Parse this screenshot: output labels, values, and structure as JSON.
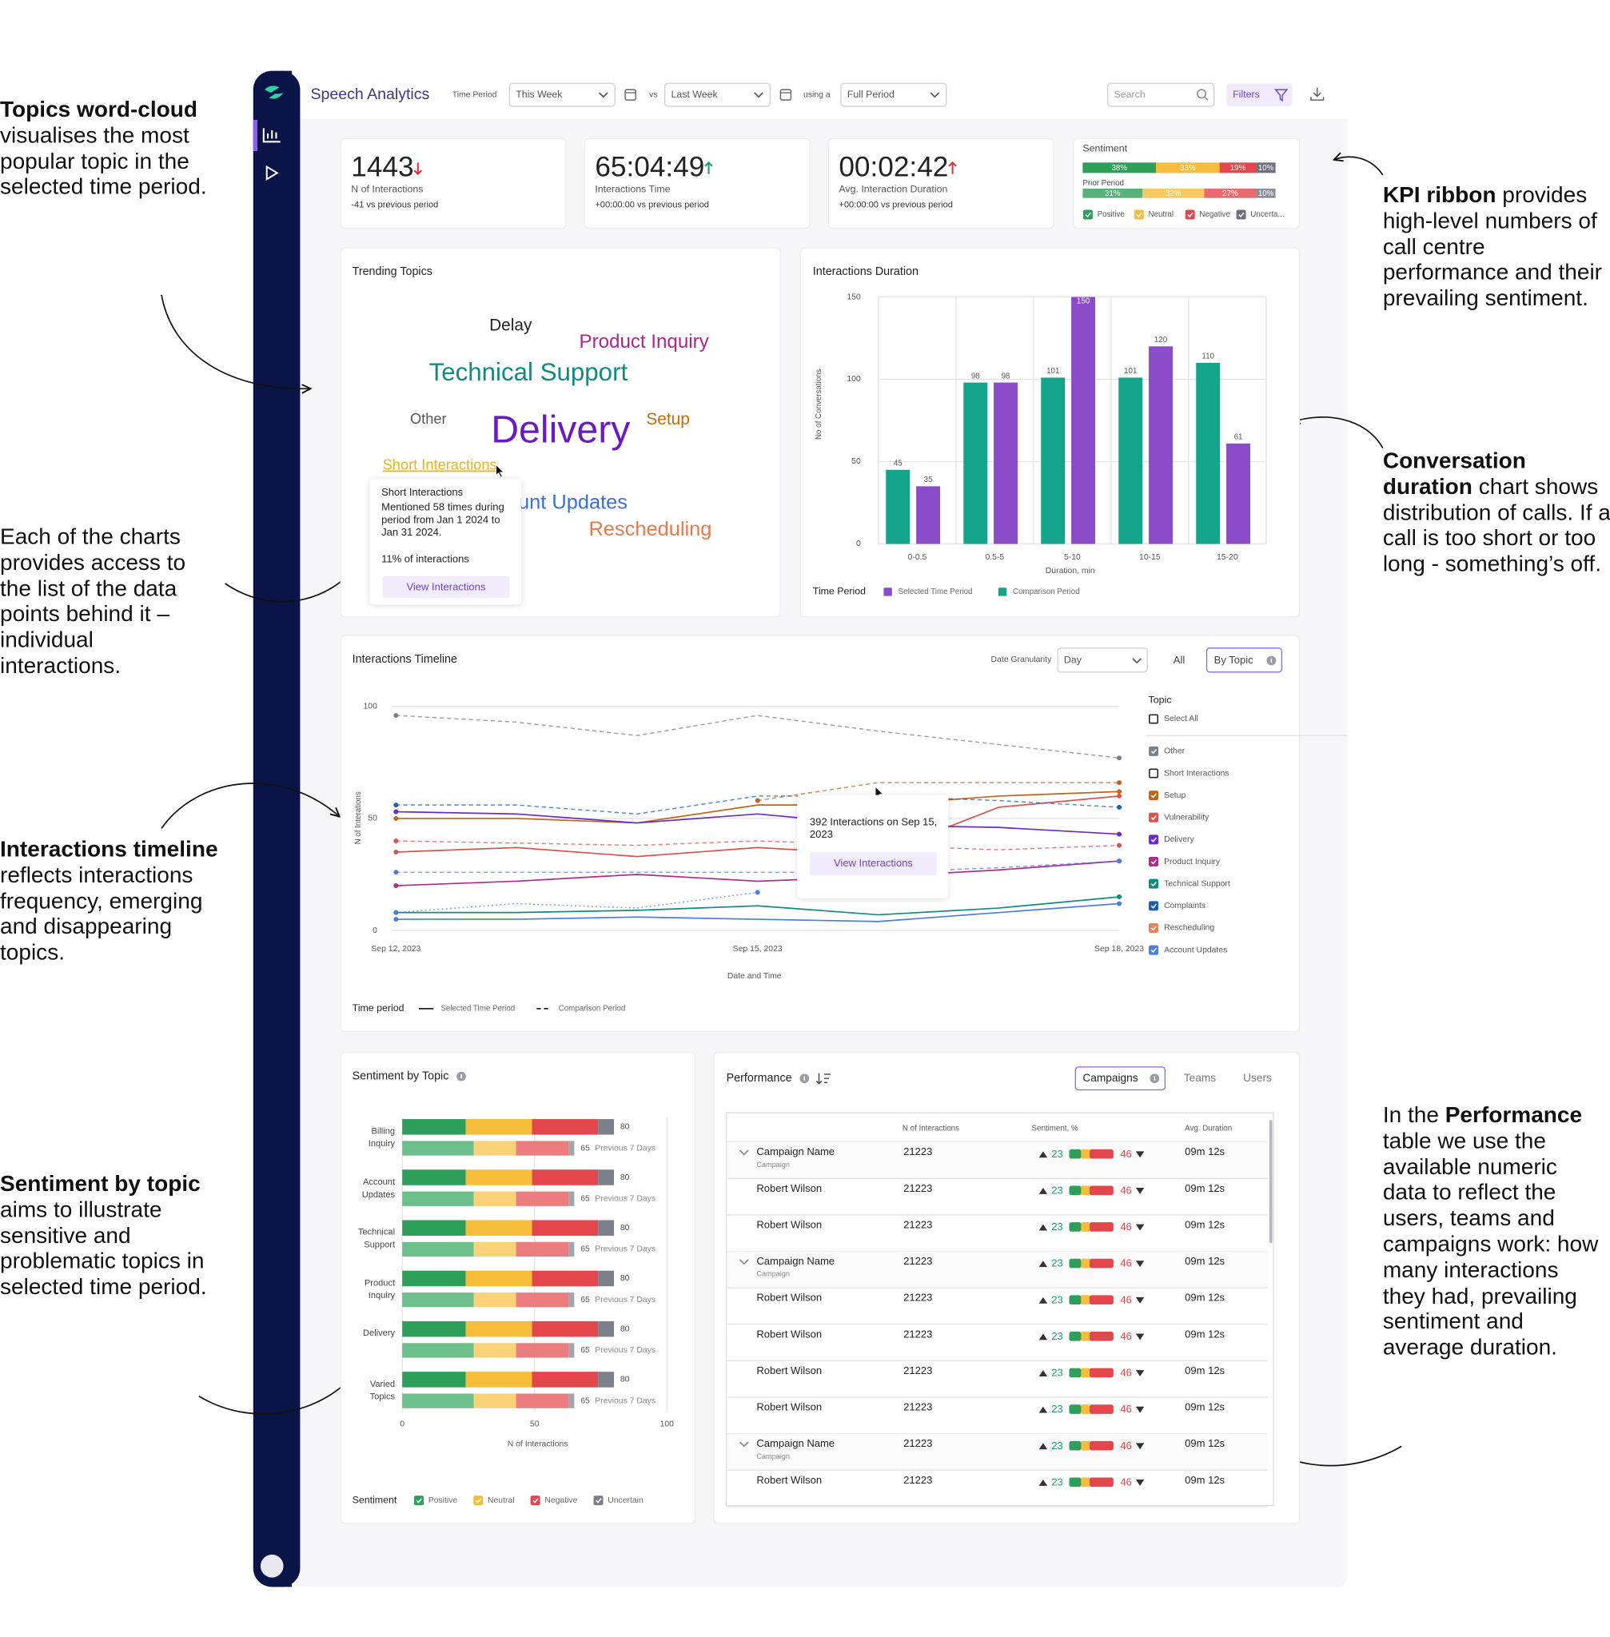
{
  "annotations": [
    {
      "runs": [
        {
          "text": "Topics word-cloud",
          "bold": true
        },
        {
          "text": " visualises the most popular topic in the selected time period."
        }
      ]
    },
    {
      "runs": [
        {
          "text": "KPI ribbon",
          "bold": true
        },
        {
          "text": " provides high-level numbers of call centre performance and their prevailing sentiment."
        }
      ]
    },
    {
      "runs": [
        {
          "text": "Each of the charts provides access to the list of the data points behind it – individual interactions."
        }
      ]
    },
    {
      "runs": [
        {
          "text": "Conversation duration",
          "bold": true
        },
        {
          "text": " chart shows distribution of calls. If a call is too short or too long - something’s off."
        }
      ]
    },
    {
      "runs": [
        {
          "text": "Interactions timeline",
          "bold": true
        },
        {
          "text": " reflects interactions frequency, emerging and disappearing topics."
        }
      ]
    },
    {
      "runs": [
        {
          "text": "Sentiment by topic",
          "bold": true
        },
        {
          "text": " aims to illustrate sensitive and problematic topics in selected time period."
        }
      ]
    },
    {
      "runs": [
        {
          "text": "In the "
        },
        {
          "text": "Performance",
          "bold": true
        },
        {
          "text": " table we use the available numeric data to reflect the users, teams and campaigns work: how many interactions they had, prevailing sentiment and average duration."
        }
      ]
    }
  ],
  "header": {
    "title": "Speech Analytics",
    "time_period_label": "Time Period",
    "time_period": "This Week",
    "vs": "vs",
    "compare_period": "Last Week",
    "using": "using a",
    "range": "Full Period",
    "search": "Search",
    "filters": "Filters"
  },
  "kpis": [
    {
      "value": 1443,
      "trend": "down",
      "trend_color": "#d9363e",
      "label": "N of Interactions",
      "delta": "-41 vs previous period"
    },
    {
      "value": "65:04:49",
      "trend": "up",
      "trend_color": "#1f9d6b",
      "label": "Interactions Time",
      "delta": "+00:00:00 vs previous period"
    },
    {
      "value": "00:02:42",
      "trend": "up",
      "trend_color": "#d9363e",
      "label": "Avg. Interaction Duration",
      "delta": "+00:00:00 vs previous period"
    }
  ],
  "sentiment_summary": {
    "type": "stacked-bar",
    "title": "Sentiment",
    "series": [
      {
        "name": "Positive",
        "color": "#2e9e5b"
      },
      {
        "name": "Neutral",
        "color": "#f6bd3a"
      },
      {
        "name": "Negative",
        "color": "#e3464c"
      },
      {
        "name": "Uncerta...",
        "color": "#6e717c"
      }
    ],
    "current": {
      "values": [
        38,
        33,
        19,
        10
      ],
      "value_labels": [
        "38%",
        "33%",
        "19%",
        "10%"
      ]
    },
    "prior": {
      "label": "Prior Period",
      "values": [
        31,
        32,
        27,
        10
      ],
      "value_labels": [
        "31%",
        "32%",
        "27%",
        "10%"
      ]
    }
  },
  "word_cloud": {
    "title": "Trending Topics",
    "words": [
      {
        "text": "Delay",
        "color": "#222222"
      },
      {
        "text": "Product Inquiry",
        "color": "#b0238a"
      },
      {
        "text": "Technical Support",
        "color": "#138a7e"
      },
      {
        "text": "Other",
        "color": "#555555"
      },
      {
        "text": "Delivery",
        "color": "#6a1bc0"
      },
      {
        "text": "Setup",
        "color": "#c96a08"
      },
      {
        "text": "Short Interactions",
        "color": "#e8b420"
      },
      {
        "text": "Account Updates",
        "color": "#3a6fd8"
      },
      {
        "text": "Rescheduling",
        "color": "#e8794a"
      }
    ],
    "tooltip": {
      "title": "Short Interactions",
      "text": "Mentioned 58 times during period from Jan 1 2024 to Jan 31 2024.",
      "share": "11% of interactions",
      "button": "View Interactions"
    }
  },
  "duration_chart": {
    "type": "bar",
    "title": "Interactions Duration",
    "ylabel": "No of Conversations",
    "xlabel": "Duration, min",
    "categories": [
      "0-0.5",
      "0.5-5",
      "5-10",
      "10-15",
      "15-20"
    ],
    "series": [
      {
        "name": "Selected Time Period",
        "color": "#8a4cc8",
        "values": [
          35,
          98,
          150,
          120,
          61
        ]
      },
      {
        "name": "Comparison Period",
        "color": "#14a38b",
        "values": [
          45,
          98,
          101,
          101,
          110
        ]
      }
    ],
    "ylim": [
      0,
      150
    ],
    "yticks": [
      0,
      50,
      100,
      150
    ],
    "grid": true,
    "legend_title": "Time Period"
  },
  "timeline_chart": {
    "type": "line",
    "title": "Interactions Timeline",
    "granularity_label": "Date Granularity",
    "granularity": "Day",
    "modes": [
      "All",
      "By Topic"
    ],
    "active_mode": 1,
    "ylabel": "N of Interations",
    "xlabel": "Date and Time",
    "categories": [
      "Sep 12, 2023",
      null,
      null,
      "Sep 15, 2023",
      null,
      null,
      "Sep 18, 2023"
    ],
    "ylim": [
      0,
      100
    ],
    "yticks": [
      0,
      50,
      100
    ],
    "grid": true,
    "topic_title": "Topic",
    "select_all": "Select All",
    "topics": [
      {
        "name": "Other",
        "color": "#7b7f8a",
        "checked": true,
        "lines": [
          {
            "style": "dashed",
            "values": [
              96,
              93,
              87,
              96,
              89,
              83,
              77
            ]
          }
        ]
      },
      {
        "name": "Short Interactions",
        "color": "#e8b420",
        "checked": false,
        "lines": []
      },
      {
        "name": "Setup",
        "color": "#c0651a",
        "checked": true,
        "lines": [
          {
            "style": "solid",
            "values": [
              50,
              50,
              48,
              56,
              56,
              60,
              62
            ]
          },
          {
            "style": "dashed",
            "values": [
              null,
              null,
              null,
              58,
              66,
              66,
              66
            ]
          }
        ]
      },
      {
        "name": "Vulnerability",
        "color": "#d9534f",
        "checked": true,
        "lines": [
          {
            "style": "solid",
            "values": [
              35,
              37,
              33,
              37,
              34,
              55,
              60
            ]
          },
          {
            "style": "dashed",
            "values": [
              40,
              39,
              38,
              40,
              38,
              36,
              38
            ]
          }
        ]
      },
      {
        "name": "Delivery",
        "color": "#6a2bc4",
        "checked": true,
        "lines": [
          {
            "style": "solid",
            "values": [
              53,
              52,
              48,
              52,
              47,
              46,
              43
            ]
          }
        ]
      },
      {
        "name": "Product Inquiry",
        "color": "#b02a8c",
        "checked": true,
        "lines": [
          {
            "style": "solid",
            "values": [
              20,
              22,
              25,
              22,
              24,
              27,
              31
            ]
          }
        ]
      },
      {
        "name": "Technical Support",
        "color": "#138a7e",
        "checked": true,
        "lines": [
          {
            "style": "solid",
            "values": [
              8,
              8,
              9,
              11,
              7,
              10,
              15
            ]
          }
        ]
      },
      {
        "name": "Complaints",
        "color": "#1a5fb4",
        "checked": true,
        "lines": [
          {
            "style": "dashed",
            "values": [
              56,
              56,
              52,
              60,
              60,
              58,
              55
            ]
          }
        ]
      },
      {
        "name": "Rescheduling",
        "color": "#e8825a",
        "checked": true,
        "lines": []
      },
      {
        "name": "Account Updates",
        "color": "#4a7de0",
        "checked": true,
        "lines": [
          {
            "style": "solid",
            "values": [
              5,
              5,
              6,
              5,
              4,
              8,
              12
            ]
          },
          {
            "style": "dashed",
            "values": [
              26,
              26,
              26,
              26,
              26,
              28,
              31
            ]
          },
          {
            "style": "dotted",
            "values": [
              8,
              12,
              10,
              17,
              null,
              null,
              null
            ]
          }
        ]
      }
    ],
    "tooltip": {
      "text": "392 Interactions on Sep 15, 2023",
      "button": "View Interactions"
    },
    "legend_title": "Time period",
    "legend": [
      {
        "label": "Selected Time Period",
        "style": "solid"
      },
      {
        "label": "Comparison Period",
        "style": "dashed"
      }
    ]
  },
  "sentiment_topic_chart": {
    "type": "stacked-bar-horizontal",
    "title": "Sentiment by Topic",
    "categories": [
      "Billing Inquiry",
      "Account Updates",
      "Technical Support",
      "Product Inquiry",
      "Delivery",
      "Varied Topics"
    ],
    "series": [
      {
        "name": "Positive",
        "color": "#2e9e5b",
        "prior_color": "#6cbf8a",
        "values": [
          24,
          24,
          24,
          24,
          24,
          24
        ],
        "prior_values": [
          27,
          27,
          27,
          27,
          27,
          27
        ]
      },
      {
        "name": "Neutral",
        "color": "#f6bd3a",
        "prior_color": "#fad277",
        "values": [
          25,
          25,
          25,
          25,
          25,
          25
        ],
        "prior_values": [
          16,
          16,
          16,
          16,
          16,
          16
        ]
      },
      {
        "name": "Negative",
        "color": "#e3464c",
        "prior_color": "#ec7d7f",
        "values": [
          25,
          25,
          25,
          25,
          25,
          25
        ],
        "prior_values": [
          20,
          20,
          20,
          20,
          20,
          20
        ]
      },
      {
        "name": "Uncertain",
        "color": "#7d808b",
        "prior_color": "#a3a5ad",
        "values": [
          6,
          6,
          6,
          6,
          6,
          6
        ],
        "prior_values": [
          2,
          2,
          2,
          2,
          2,
          2
        ]
      }
    ],
    "totals": [
      80,
      80,
      80,
      80,
      80,
      80
    ],
    "prior_totals": [
      65,
      65,
      65,
      65,
      65,
      65
    ],
    "prior_label": "Previous 7 Days",
    "xlim": [
      0,
      100
    ],
    "xticks": [
      0,
      50,
      100
    ],
    "xlabel": "N of Interactions",
    "legend_title": "Sentiment",
    "grid": true
  },
  "performance": {
    "title": "Performance",
    "tabs": [
      "Campaigns",
      "Teams",
      "Users"
    ],
    "active_tab": 0,
    "columns": [
      "N of Interactions",
      "Sentiment, %",
      "Avg. Duration"
    ],
    "rows": [
      {
        "name": "Campaign Name",
        "subtitle": "Campaign",
        "interactions": 21223,
        "positive": 23,
        "negative": 46,
        "duration": "09m 12s"
      },
      {
        "name": "Robert Wilson",
        "interactions": 21223,
        "positive": 23,
        "negative": 46,
        "duration": "09m 12s"
      },
      {
        "name": "Robert Wilson",
        "interactions": 21223,
        "positive": 23,
        "negative": 46,
        "duration": "09m 12s"
      },
      {
        "name": "Campaign Name",
        "subtitle": "Campaign",
        "interactions": 21223,
        "positive": 23,
        "negative": 46,
        "duration": "09m 12s"
      },
      {
        "name": "Robert Wilson",
        "interactions": 21223,
        "positive": 23,
        "negative": 46,
        "duration": "09m 12s"
      },
      {
        "name": "Robert Wilson",
        "interactions": 21223,
        "positive": 23,
        "negative": 46,
        "duration": "09m 12s"
      },
      {
        "name": "Robert Wilson",
        "interactions": 21223,
        "positive": 23,
        "negative": 46,
        "duration": "09m 12s"
      },
      {
        "name": "Robert Wilson",
        "interactions": 21223,
        "positive": 23,
        "negative": 46,
        "duration": "09m 12s"
      },
      {
        "name": "Campaign Name",
        "subtitle": "Campaign",
        "interactions": 21223,
        "positive": 23,
        "negative": 46,
        "duration": "09m 12s"
      },
      {
        "name": "Robert Wilson",
        "interactions": 21223,
        "positive": 23,
        "negative": 46,
        "duration": "09m 12s"
      }
    ]
  }
}
